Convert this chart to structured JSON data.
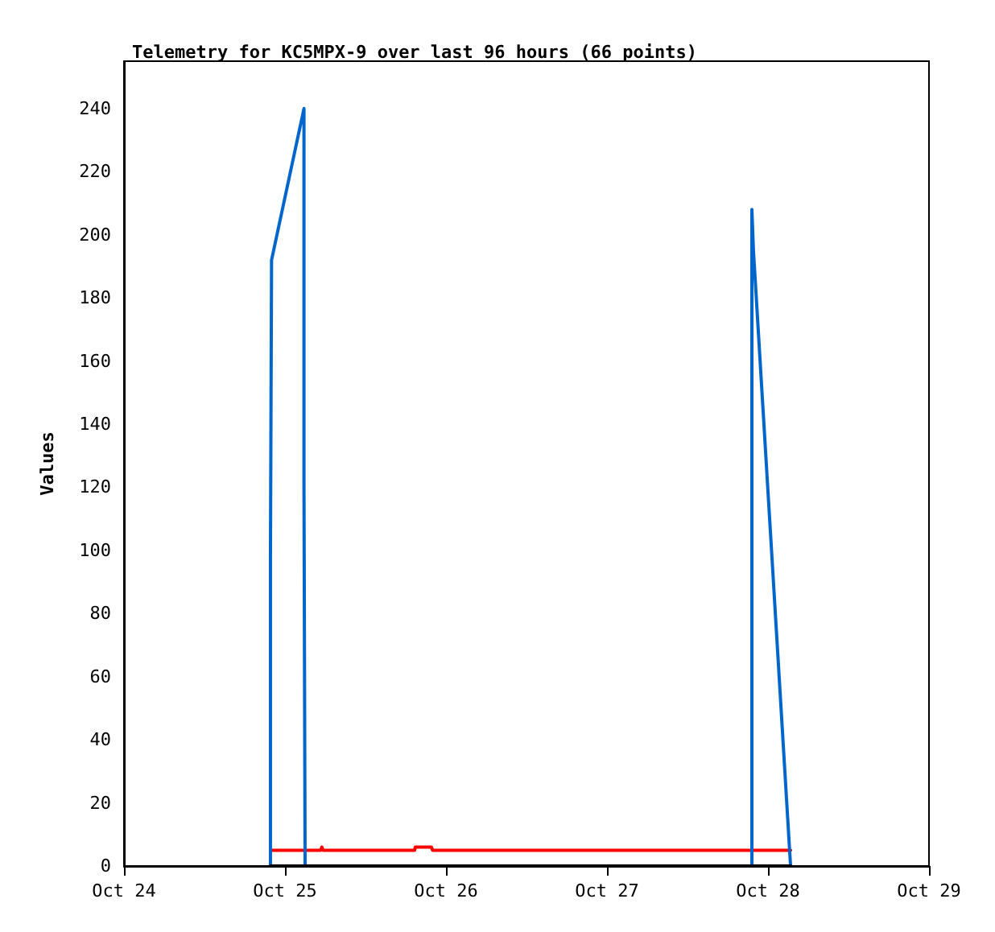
{
  "chart_data": {
    "type": "line",
    "title": "Telemetry for KC5MPX-9 over last 96 hours (66 points)",
    "ylabel": "Values",
    "series": [
      {
        "color": "#ff0000",
        "x": [
          "--10-24T21:50",
          "--10-25T05:20",
          "--10-25T05:30",
          "--10-25T05:40",
          "--10-25T19:20",
          "--10-25T19:25",
          "--10-25T21:50",
          "--10-25T22:00",
          "--10-28T03:22"
        ],
        "values": [
          5,
          5,
          6,
          5,
          5,
          6,
          6,
          5,
          5
        ]
      },
      {
        "color": "#0066cc",
        "x": [
          "--10-24T21:50",
          "--10-24T21:50",
          "--10-24T22:00",
          "--10-25T02:50",
          "--10-25T02:50",
          "--10-25T03:00",
          "--10-27T21:36",
          "--10-27T21:36",
          "--10-27T21:50",
          "--10-28T03:22"
        ],
        "values": [
          0,
          97,
          192,
          240,
          120,
          0,
          0,
          208,
          195,
          0
        ]
      },
      {
        "color": "#000000",
        "x": [
          "--10-24T21:50",
          "--10-28T03:22"
        ],
        "values": [
          0,
          0
        ]
      }
    ],
    "xlim": [
      "--10-24",
      "--10-29"
    ],
    "xticks": [
      {
        "value": "--10-24",
        "label": "Oct 24"
      },
      {
        "value": "--10-25",
        "label": "Oct 25"
      },
      {
        "value": "--10-26",
        "label": "Oct 26"
      },
      {
        "value": "--10-27",
        "label": "Oct 27"
      },
      {
        "value": "--10-28",
        "label": "Oct 28"
      },
      {
        "value": "--10-29",
        "label": "Oct 29"
      }
    ],
    "ylim": [
      0,
      255
    ],
    "yticks": [
      0,
      20,
      40,
      60,
      80,
      100,
      120,
      140,
      160,
      180,
      200,
      220,
      240
    ],
    "grid": false,
    "marker": "none",
    "line_style": "solid"
  }
}
